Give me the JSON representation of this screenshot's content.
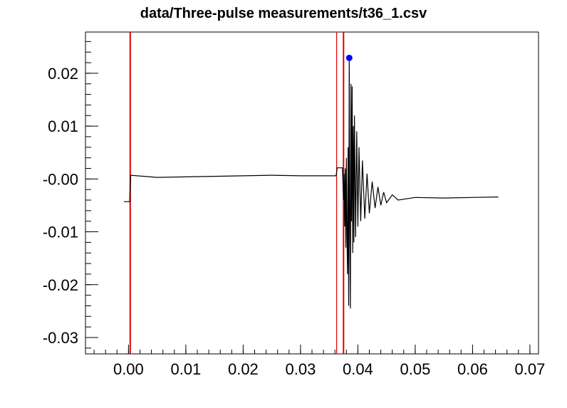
{
  "chart_data": {
    "type": "line",
    "title": "data/Three-pulse measurements/t36_1.csv",
    "xlim": [
      -0.0075,
      0.0715
    ],
    "ylim": [
      -0.0331,
      0.0278
    ],
    "x_ticks": [
      0.0,
      0.01,
      0.02,
      0.03,
      0.04,
      0.05,
      0.06,
      0.07
    ],
    "x_tick_labels": [
      "0.00",
      "0.01",
      "0.02",
      "0.03",
      "0.04",
      "0.05",
      "0.06",
      "0.07"
    ],
    "y_ticks": [
      0.02,
      0.01,
      0.0,
      -0.01,
      -0.02,
      -0.03
    ],
    "y_tick_labels": [
      "0.02",
      "0.01",
      "-0.00",
      "-0.01",
      "-0.02",
      "-0.03"
    ],
    "grid": false,
    "colors": {
      "signal": "#000000",
      "markers": "#dd0000",
      "peak": "#0000ff"
    },
    "vertical_markers": [
      0.0003,
      0.0363,
      0.0375
    ],
    "peak_point": {
      "x": 0.0385,
      "y": 0.0229
    },
    "series": [
      {
        "points": [
          [
            -0.0008,
            -0.0043
          ],
          [
            0.0002,
            -0.0043
          ],
          [
            0.0004,
            0.0007
          ],
          [
            0.005,
            0.0003
          ],
          [
            0.01,
            0.0004
          ],
          [
            0.015,
            0.0005
          ],
          [
            0.02,
            0.0006
          ],
          [
            0.025,
            0.0007
          ],
          [
            0.03,
            0.0006
          ],
          [
            0.0362,
            0.0006
          ],
          [
            0.0364,
            0.0021
          ],
          [
            0.0373,
            0.0021
          ],
          [
            0.0375,
            -0.004
          ],
          [
            0.0376,
            0.001
          ],
          [
            0.0377,
            -0.009
          ],
          [
            0.0378,
            0.002
          ],
          [
            0.0379,
            -0.013
          ],
          [
            0.038,
            0.004
          ],
          [
            0.0381,
            -0.011
          ],
          [
            0.0382,
            -0.018
          ],
          [
            0.0383,
            0.006
          ],
          [
            0.0384,
            -0.024
          ],
          [
            0.0385,
            0.0229
          ],
          [
            0.0386,
            -0.01
          ],
          [
            0.0387,
            -0.0245
          ],
          [
            0.0388,
            0.018
          ],
          [
            0.0389,
            -0.008
          ],
          [
            0.039,
            0.0175
          ],
          [
            0.0391,
            -0.014
          ],
          [
            0.0392,
            0.01
          ],
          [
            0.0393,
            -0.012
          ],
          [
            0.0394,
            0.012
          ],
          [
            0.0396,
            -0.011
          ],
          [
            0.0398,
            0.009
          ],
          [
            0.04,
            -0.009
          ],
          [
            0.0402,
            0.006
          ],
          [
            0.0405,
            -0.008
          ],
          [
            0.0408,
            0.0035
          ],
          [
            0.0412,
            -0.0075
          ],
          [
            0.0416,
            0.001
          ],
          [
            0.042,
            -0.0065
          ],
          [
            0.0425,
            -0.0005
          ],
          [
            0.043,
            -0.0055
          ],
          [
            0.0435,
            -0.0015
          ],
          [
            0.044,
            -0.005
          ],
          [
            0.0445,
            -0.0025
          ],
          [
            0.045,
            -0.0045
          ],
          [
            0.046,
            -0.003
          ],
          [
            0.047,
            -0.004
          ],
          [
            0.05,
            -0.0035
          ],
          [
            0.055,
            -0.0036
          ],
          [
            0.06,
            -0.0035
          ],
          [
            0.0645,
            -0.0034
          ]
        ]
      }
    ]
  }
}
